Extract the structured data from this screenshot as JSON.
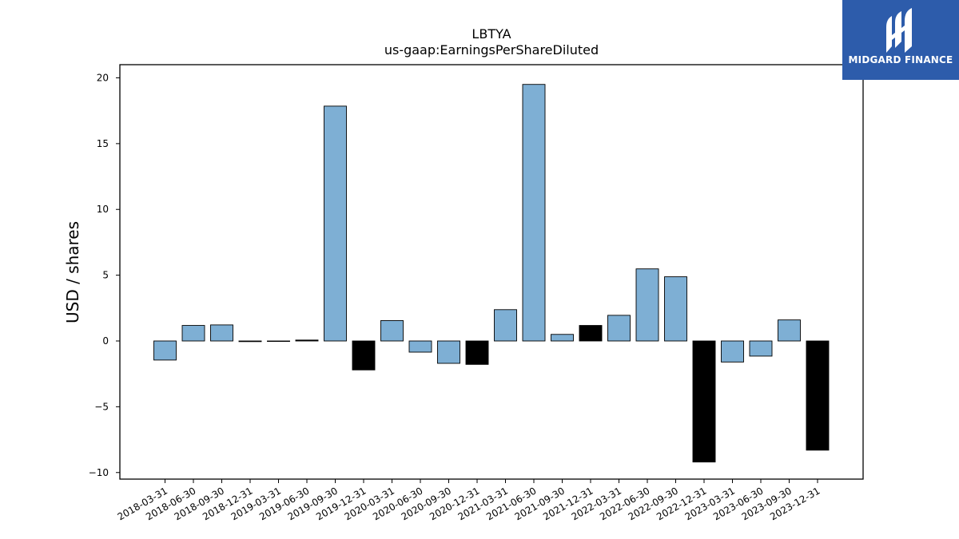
{
  "branding": {
    "logo_text": "MIDGARD FINANCE",
    "logo_icon": "midgard-m-logo-icon",
    "logo_bg": "#2d5cab"
  },
  "colors": {
    "bar_positive": "#7eafd4",
    "bar_highlight": "#000000",
    "bar_edge": "#000000"
  },
  "chart_data": {
    "type": "bar",
    "title": "LBTYA",
    "subtitle": "us-gaap:EarningsPerShareDiluted",
    "xlabel": "",
    "ylabel": "USD / shares",
    "ylim": [
      -10.5,
      21
    ],
    "yticks": [
      -10,
      -5,
      0,
      5,
      10,
      15,
      20
    ],
    "ytick_labels": [
      "−10",
      "−5",
      "0",
      "5",
      "10",
      "15",
      "20"
    ],
    "grid": false,
    "categories": [
      "2018-03-31",
      "2018-06-30",
      "2018-09-30",
      "2018-12-31",
      "2019-03-31",
      "2019-06-30",
      "2019-09-30",
      "2019-12-31",
      "2020-03-31",
      "2020-06-30",
      "2020-09-30",
      "2020-12-31",
      "2021-03-31",
      "2021-06-30",
      "2021-09-30",
      "2021-12-31",
      "2022-03-31",
      "2022-06-30",
      "2022-09-30",
      "2022-12-31",
      "2023-03-31",
      "2023-06-30",
      "2023-09-30",
      "2023-12-31"
    ],
    "values": [
      -1.45,
      1.18,
      1.22,
      -0.05,
      -0.03,
      0.07,
      17.85,
      -2.2,
      1.55,
      -0.85,
      -1.7,
      -1.78,
      2.38,
      19.5,
      0.5,
      1.18,
      1.95,
      5.48,
      4.88,
      -9.2,
      -1.6,
      -1.15,
      1.6,
      -8.3
    ],
    "highlight": [
      false,
      false,
      false,
      true,
      true,
      true,
      false,
      true,
      false,
      false,
      false,
      true,
      false,
      false,
      false,
      true,
      false,
      false,
      false,
      true,
      false,
      false,
      false,
      true
    ]
  }
}
